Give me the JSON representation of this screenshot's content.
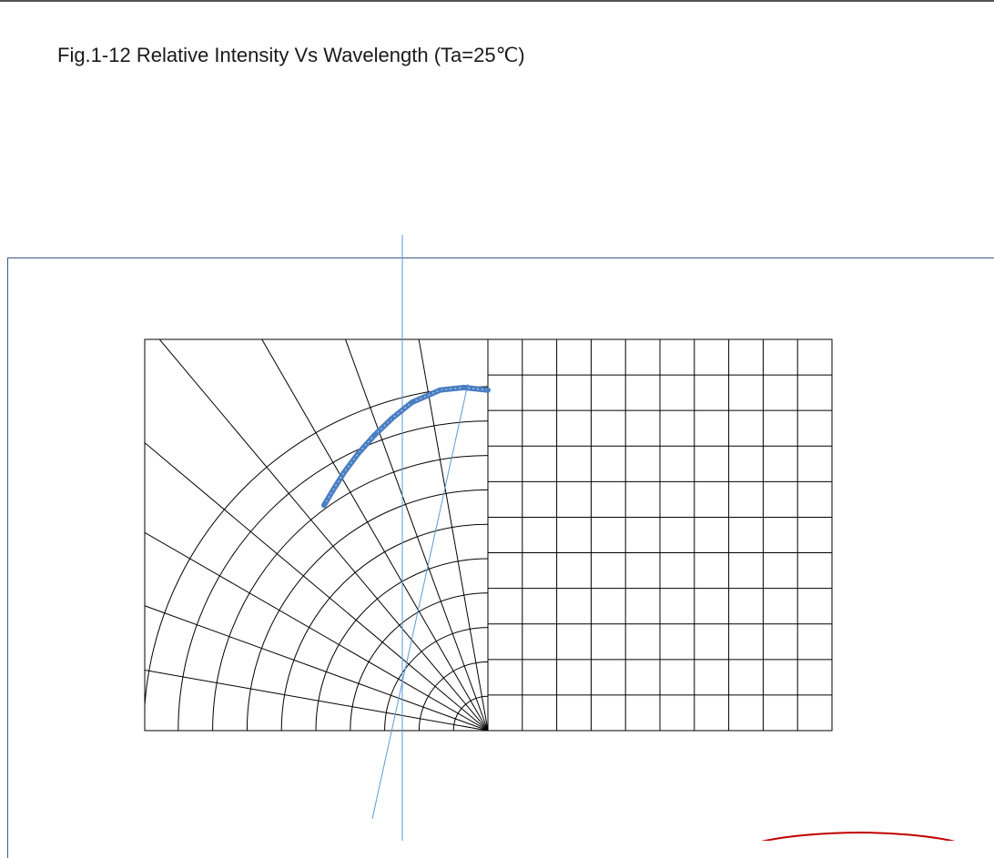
{
  "figure": {
    "caption": "Fig.1-12 Relative Intensity Vs Wavelength (Ta=25℃)"
  },
  "chart_data": {
    "type": "line",
    "title": "",
    "xlabel": "",
    "ylabel": "",
    "polar_grid": {
      "rings": 10,
      "angle_step_deg": 10,
      "angle_range_deg": [
        90,
        180
      ]
    },
    "cartesian_grid": {
      "columns": 10,
      "rows": 11
    },
    "series": [
      {
        "values": [
          [
            0.99,
            0
          ],
          [
            1.0,
            4
          ],
          [
            1.0,
            8
          ],
          [
            0.98,
            13
          ],
          [
            0.95,
            17
          ],
          [
            0.92,
            21
          ],
          [
            0.89,
            25
          ],
          [
            0.86,
            29
          ],
          [
            0.83,
            33
          ],
          [
            0.81,
            36
          ]
        ]
      }
    ],
    "grid": true,
    "colors": {
      "grid": "#000000",
      "curve": "#4a7ec2",
      "guide": "#5b9bd5",
      "frame": "#3d5a80",
      "highlight": "#c00000"
    }
  }
}
